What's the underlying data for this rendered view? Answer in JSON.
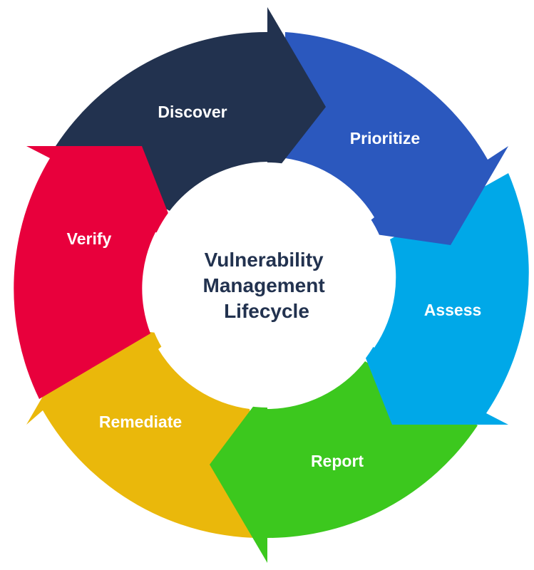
{
  "diagram": {
    "center_title_lines": [
      "Vulnerability",
      "Management",
      "Lifecycle"
    ],
    "center_title_color": "#22324f",
    "stages": [
      {
        "label": "Discover",
        "color": "#22324f"
      },
      {
        "label": "Prioritize",
        "color": "#2b58be"
      },
      {
        "label": "Assess",
        "color": "#00a8e8"
      },
      {
        "label": "Report",
        "color": "#3cc81e"
      },
      {
        "label": "Remediate",
        "color": "#eab80b"
      },
      {
        "label": "Verify",
        "color": "#e8003c"
      }
    ],
    "background_color": "#ffffff"
  }
}
